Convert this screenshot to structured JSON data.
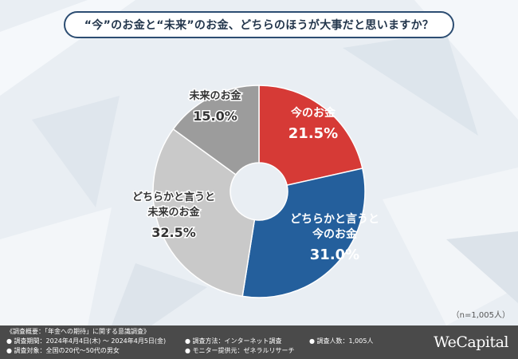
{
  "title": "“今”のお金と“未来”のお金、どちらのほうが大事だと思いますか？",
  "chart_data": {
    "type": "pie",
    "variant": "donut",
    "title": "“今”のお金と“未来”のお金、どちらのほうが大事だと思いますか？",
    "categories": [
      "今のお金",
      "どちらかと言うと今のお金",
      "どちらかと言うと未来のお金",
      "未来のお金"
    ],
    "values": [
      21.5,
      31.0,
      32.5,
      15.0
    ],
    "value_labels": [
      "21.5%",
      "31.0%",
      "32.5%",
      "15.0%"
    ],
    "colors": [
      "#d63a36",
      "#245f9c",
      "#c9c9c9",
      "#9c9c9c"
    ],
    "label_lines": [
      [
        "今のお金"
      ],
      [
        "どちらかと言うと",
        "今のお金"
      ],
      [
        "どちらかと言うと",
        "未来のお金"
      ],
      [
        "未来のお金"
      ]
    ]
  },
  "sample_note": "（n=1,005人）",
  "footer": {
    "survey_name": "《調査概要：「年金への期待」に関する意識調査》",
    "period": "● 調査期間：2024年4月4日(木) ～ 2024年4月5日(金)",
    "target": "● 調査対象：全国の20代～50代の男女",
    "method": "● 調査方法：インターネット調査",
    "provider": "● モニター提供元：ゼネラルリサーチ",
    "respondents": "● 調査人数：1,005人"
  },
  "brand": "WeCapital"
}
